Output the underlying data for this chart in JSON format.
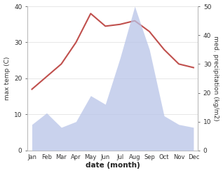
{
  "months": [
    "Jan",
    "Feb",
    "Mar",
    "Apr",
    "May",
    "Jun",
    "Jul",
    "Aug",
    "Sep",
    "Oct",
    "Nov",
    "Dec"
  ],
  "temperature": [
    17,
    20.5,
    24,
    30,
    38,
    34.5,
    35,
    36,
    33,
    28,
    24,
    23
  ],
  "precipitation": [
    9,
    13,
    8,
    10,
    19,
    16,
    32,
    50,
    35,
    12,
    9,
    8
  ],
  "temp_color": "#c0504d",
  "precip_color": "#b8c4e8",
  "temp_ylim": [
    0,
    40
  ],
  "precip_ylim": [
    0,
    50
  ],
  "temp_yticks": [
    0,
    10,
    20,
    30,
    40
  ],
  "precip_yticks": [
    0,
    10,
    20,
    30,
    40,
    50
  ],
  "xlabel": "date (month)",
  "ylabel_left": "max temp (C)",
  "ylabel_right": "med. precipitation (kg/m2)",
  "fig_width": 3.18,
  "fig_height": 2.47,
  "dpi": 100
}
